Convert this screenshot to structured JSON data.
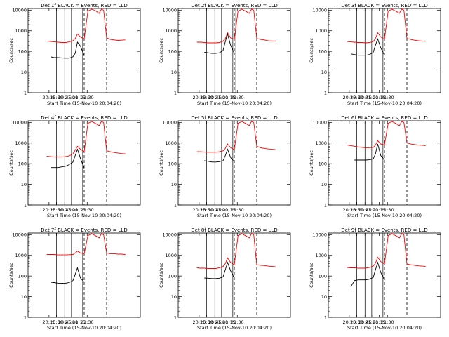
{
  "chart_data": [
    {
      "type": "line",
      "title": "Det 1f BLACK = Events, RED = LLD",
      "xlabel": "Start Time (15-Nov-10 20:04:20)",
      "ylabel": "Counts/sec",
      "xticks": [
        "20:15",
        "20:30",
        "20:45",
        "21:00",
        "21:15",
        "21:30"
      ],
      "yticks": [
        "1",
        "10",
        "100",
        "1000",
        "10000"
      ],
      "ylim": [
        1,
        12000
      ],
      "scale": "log",
      "series": [
        {
          "name": "RED = LLD",
          "color": "#ff0000",
          "x": [
            20.0,
            20.5,
            21.0,
            21.5,
            22.0,
            22.5,
            23.0,
            23.5,
            23.8,
            24.1,
            24.5,
            25.0,
            25.5,
            26.0,
            26.5,
            27.0,
            27.3,
            27.6,
            28.0,
            28.5,
            29.0,
            29.5,
            30.0,
            30.5
          ],
          "y": [
            320,
            300,
            290,
            280,
            270,
            270,
            290,
            330,
            420,
            700,
            500,
            400,
            9000,
            11000,
            9500,
            7000,
            11000,
            10000,
            450,
            380,
            360,
            340,
            350,
            360
          ]
        },
        {
          "name": "BLACK = Events",
          "color": "#000000",
          "x": [
            20.5,
            21.0,
            21.5,
            22.0,
            22.5,
            23.0,
            23.5,
            23.8,
            24.1,
            24.5,
            25.0
          ],
          "y": [
            55,
            50,
            50,
            48,
            47,
            47,
            55,
            80,
            280,
            180,
            60
          ]
        }
      ],
      "vlines_solid": [
        21.3,
        22.4,
        23.3,
        24.8
      ],
      "vlines_dashed": [
        25.0,
        28.0
      ]
    },
    {
      "type": "line",
      "title": "Det 2f BLACK = Events, RED = LLD",
      "xlabel": "Start Time (15-Nov-10 20:04:20)",
      "ylabel": "Counts/sec",
      "xticks": [
        "20:15",
        "20:30",
        "20:45",
        "21:00",
        "21:15",
        "21:30"
      ],
      "yticks": [
        "1",
        "10",
        "100",
        "1000",
        "10000"
      ],
      "ylim": [
        1,
        12000
      ],
      "scale": "log",
      "series": [
        {
          "name": "RED = LLD",
          "color": "#ff0000",
          "x": [
            20.0,
            20.5,
            21.0,
            21.5,
            22.0,
            22.5,
            23.0,
            23.5,
            23.8,
            24.1,
            24.5,
            25.0,
            25.5,
            26.0,
            26.5,
            27.0,
            27.3,
            27.6,
            28.0,
            28.5,
            29.0,
            29.5,
            30.0,
            30.5
          ],
          "y": [
            280,
            280,
            270,
            260,
            260,
            260,
            270,
            310,
            420,
            800,
            450,
            380,
            9000,
            11000,
            9000,
            7000,
            11000,
            10000,
            420,
            380,
            360,
            330,
            320,
            320
          ]
        },
        {
          "name": "BLACK = Events",
          "color": "#000000",
          "x": [
            21.0,
            21.5,
            22.0,
            22.5,
            23.0,
            23.5,
            23.8,
            24.1,
            24.5,
            25.0
          ],
          "y": [
            90,
            85,
            80,
            80,
            85,
            110,
            300,
            700,
            200,
            80
          ]
        }
      ],
      "vlines_solid": [
        21.3,
        22.4,
        23.3,
        24.8,
        25.2
      ],
      "vlines_dashed": [
        25.0,
        28.0
      ]
    },
    {
      "type": "line",
      "title": "Det 3f BLACK = Events, RED = LLD",
      "xlabel": "Start Time (15-Nov-10 20:04:20)",
      "ylabel": "Counts/sec",
      "xticks": [
        "20:15",
        "20:30",
        "20:45",
        "21:00",
        "21:15",
        "21:30"
      ],
      "yticks": [
        "1",
        "10",
        "100",
        "1000",
        "10000"
      ],
      "ylim": [
        1,
        12000
      ],
      "scale": "log",
      "series": [
        {
          "name": "RED = LLD",
          "color": "#ff0000",
          "x": [
            20.0,
            20.5,
            21.0,
            21.5,
            22.0,
            22.5,
            23.0,
            23.5,
            23.8,
            24.1,
            24.5,
            25.0,
            25.5,
            26.0,
            26.5,
            27.0,
            27.3,
            27.6,
            28.0,
            28.5,
            29.0,
            29.5,
            30.0,
            30.5
          ],
          "y": [
            300,
            290,
            280,
            270,
            270,
            260,
            270,
            300,
            420,
            800,
            500,
            380,
            9000,
            11000,
            9000,
            7000,
            11000,
            10000,
            420,
            380,
            350,
            330,
            320,
            310
          ]
        },
        {
          "name": "BLACK = Events",
          "color": "#000000",
          "x": [
            20.5,
            21.0,
            21.5,
            22.0,
            22.5,
            23.0,
            23.5,
            23.8,
            24.1,
            24.5,
            25.0
          ],
          "y": [
            75,
            70,
            65,
            65,
            65,
            70,
            90,
            200,
            400,
            150,
            65
          ]
        }
      ],
      "vlines_solid": [
        21.3,
        22.4,
        23.3,
        24.8
      ],
      "vlines_dashed": [
        25.0,
        28.0
      ]
    },
    {
      "type": "line",
      "title": "Det 4f BLACK = Events, RED = LLD",
      "xlabel": "Start Time (15-Nov-10 20:04:20)",
      "ylabel": "Counts/sec",
      "xticks": [
        "20:15",
        "20:30",
        "20:45",
        "21:00",
        "21:15",
        "21:30"
      ],
      "yticks": [
        "1",
        "10",
        "100",
        "1000",
        "10000"
      ],
      "ylim": [
        1,
        12000
      ],
      "scale": "log",
      "series": [
        {
          "name": "RED = LLD",
          "color": "#ff0000",
          "x": [
            20.0,
            20.5,
            21.0,
            21.5,
            22.0,
            22.5,
            23.0,
            23.5,
            23.8,
            24.1,
            24.5,
            25.0,
            25.5,
            26.0,
            26.5,
            27.0,
            27.3,
            27.6,
            28.0,
            28.5,
            29.0,
            29.5,
            30.0,
            30.5
          ],
          "y": [
            230,
            220,
            210,
            210,
            210,
            220,
            240,
            300,
            450,
            700,
            500,
            380,
            9000,
            11000,
            9000,
            7000,
            11000,
            10000,
            420,
            380,
            350,
            330,
            310,
            300
          ]
        },
        {
          "name": "BLACK = Events",
          "color": "#000000",
          "x": [
            20.5,
            21.0,
            21.5,
            22.0,
            22.5,
            23.0,
            23.5,
            23.8,
            24.1,
            24.5,
            25.0
          ],
          "y": [
            65,
            65,
            65,
            70,
            75,
            90,
            120,
            250,
            500,
            180,
            60
          ]
        }
      ],
      "vlines_solid": [
        21.3,
        22.4,
        23.3,
        24.8
      ],
      "vlines_dashed": [
        25.0,
        28.0
      ]
    },
    {
      "type": "line",
      "title": "Det 5f BLACK = Events, RED = LLD",
      "xlabel": "Start Time (15-Nov-10 20:04:20)",
      "ylabel": "Counts/sec",
      "xticks": [
        "20:15",
        "20:30",
        "20:45",
        "21:00",
        "21:15",
        "21:30"
      ],
      "yticks": [
        "1",
        "10",
        "100",
        "1000",
        "10000"
      ],
      "ylim": [
        1,
        12000
      ],
      "scale": "log",
      "series": [
        {
          "name": "RED = LLD",
          "color": "#ff0000",
          "x": [
            20.0,
            20.5,
            21.0,
            21.5,
            22.0,
            22.5,
            23.0,
            23.5,
            23.8,
            24.1,
            24.5,
            25.0,
            25.5,
            26.0,
            26.5,
            27.0,
            27.3,
            27.6,
            28.0,
            28.5,
            29.0,
            29.5,
            30.0,
            30.5
          ],
          "y": [
            380,
            380,
            370,
            360,
            360,
            360,
            380,
            420,
            550,
            900,
            600,
            480,
            9000,
            11000,
            9000,
            7000,
            11000,
            10000,
            700,
            600,
            550,
            520,
            500,
            480
          ]
        },
        {
          "name": "BLACK = Events",
          "color": "#000000",
          "x": [
            21.0,
            21.5,
            22.0,
            22.5,
            23.0,
            23.5,
            23.8,
            24.1,
            24.5,
            25.0
          ],
          "y": [
            140,
            130,
            120,
            120,
            125,
            140,
            250,
            500,
            200,
            120
          ]
        }
      ],
      "vlines_solid": [
        21.3,
        22.4,
        23.3,
        24.8
      ],
      "vlines_dashed": [
        25.0,
        28.0
      ]
    },
    {
      "type": "line",
      "title": "Det 6f BLACK = Events, RED = LLD",
      "xlabel": "Start Time (15-Nov-10 20:04:20)",
      "ylabel": "Counts/sec",
      "xticks": [
        "20:15",
        "20:30",
        "20:45",
        "21:00",
        "21:15",
        "21:30"
      ],
      "yticks": [
        "1",
        "10",
        "100",
        "1000",
        "10000"
      ],
      "ylim": [
        1,
        12000
      ],
      "scale": "log",
      "series": [
        {
          "name": "RED = LLD",
          "color": "#ff0000",
          "x": [
            20.0,
            20.5,
            21.0,
            21.5,
            22.0,
            22.5,
            23.0,
            23.5,
            23.8,
            24.1,
            24.5,
            25.0,
            25.5,
            26.0,
            26.5,
            27.0,
            27.3,
            27.6,
            28.0,
            28.5,
            29.0,
            29.5,
            30.0,
            30.5
          ],
          "y": [
            800,
            750,
            700,
            650,
            620,
            600,
            600,
            620,
            800,
            1300,
            900,
            800,
            9000,
            11000,
            9000,
            7000,
            11000,
            10000,
            1000,
            900,
            850,
            800,
            780,
            750
          ]
        },
        {
          "name": "BLACK = Events",
          "color": "#000000",
          "x": [
            21.0,
            21.5,
            22.0,
            22.5,
            23.0,
            23.5,
            23.8,
            24.1,
            24.5,
            25.0
          ],
          "y": [
            150,
            150,
            150,
            150,
            155,
            170,
            300,
            900,
            250,
            150
          ]
        }
      ],
      "vlines_solid": [
        21.3,
        22.4,
        23.3,
        24.8
      ],
      "vlines_dashed": [
        25.0,
        28.0
      ]
    },
    {
      "type": "line",
      "title": "Det 7f BLACK = Events, RED = LLD",
      "xlabel": "Start Time (15-Nov-10 20:04:20)",
      "ylabel": "Counts/sec",
      "xticks": [
        "20:15",
        "20:30",
        "20:45",
        "21:00",
        "21:15",
        "21:30"
      ],
      "yticks": [
        "1",
        "10",
        "100",
        "1000",
        "10000"
      ],
      "ylim": [
        1,
        12000
      ],
      "scale": "log",
      "series": [
        {
          "name": "RED = LLD",
          "color": "#ff0000",
          "x": [
            20.0,
            20.5,
            21.0,
            21.5,
            22.0,
            22.5,
            23.0,
            23.5,
            23.8,
            24.1,
            24.5,
            25.0,
            25.5,
            26.0,
            26.5,
            27.0,
            27.3,
            27.6,
            28.0,
            28.5,
            29.0,
            29.5,
            30.0,
            30.5
          ],
          "y": [
            1100,
            1100,
            1100,
            1050,
            1050,
            1050,
            1080,
            1100,
            1300,
            1600,
            1300,
            1200,
            9000,
            11000,
            9000,
            7000,
            11000,
            10000,
            1300,
            1200,
            1200,
            1150,
            1150,
            1100
          ]
        },
        {
          "name": "BLACK = Events",
          "color": "#000000",
          "x": [
            20.5,
            21.0,
            21.5,
            22.0,
            22.5,
            23.0,
            23.5,
            23.8,
            24.1,
            24.5,
            25.0
          ],
          "y": [
            50,
            48,
            45,
            45,
            45,
            48,
            60,
            120,
            250,
            80,
            50
          ]
        }
      ],
      "vlines_solid": [
        21.3,
        22.4,
        23.3,
        24.8
      ],
      "vlines_dashed": [
        25.0,
        28.0
      ]
    },
    {
      "type": "line",
      "title": "Det 8f BLACK = Events, RED = LLD",
      "xlabel": "Start Time (15-Nov-10 20:04:20)",
      "ylabel": "Counts/sec",
      "xticks": [
        "20:15",
        "20:30",
        "20:45",
        "21:00",
        "21:15",
        "21:30"
      ],
      "yticks": [
        "1",
        "10",
        "100",
        "1000",
        "10000"
      ],
      "ylim": [
        1,
        12000
      ],
      "scale": "log",
      "series": [
        {
          "name": "RED = LLD",
          "color": "#ff0000",
          "x": [
            20.0,
            20.5,
            21.0,
            21.5,
            22.0,
            22.5,
            23.0,
            23.5,
            23.8,
            24.1,
            24.5,
            25.0,
            25.5,
            26.0,
            26.5,
            27.0,
            27.3,
            27.6,
            28.0,
            28.5,
            29.0,
            29.5,
            30.0,
            30.5
          ],
          "y": [
            250,
            240,
            240,
            230,
            230,
            230,
            250,
            290,
            400,
            750,
            450,
            350,
            9000,
            11000,
            9000,
            7000,
            11000,
            10000,
            350,
            330,
            320,
            300,
            290,
            280
          ]
        },
        {
          "name": "BLACK = Events",
          "color": "#000000",
          "x": [
            21.0,
            21.5,
            22.0,
            22.5,
            23.0,
            23.5,
            23.8,
            24.1,
            24.5,
            25.0
          ],
          "y": [
            80,
            78,
            75,
            75,
            78,
            90,
            200,
            450,
            180,
            80
          ]
        }
      ],
      "vlines_solid": [
        21.3,
        22.4,
        23.3,
        24.8
      ],
      "vlines_dashed": [
        25.0,
        28.0
      ]
    },
    {
      "type": "line",
      "title": "Det 9f BLACK = Events, RED = LLD",
      "xlabel": "Start Time (15-Nov-10 20:04:20)",
      "ylabel": "Counts/sec",
      "xticks": [
        "20:15",
        "20:30",
        "20:45",
        "21:00",
        "21:15",
        "21:30"
      ],
      "yticks": [
        "1",
        "10",
        "100",
        "1000",
        "10000"
      ],
      "ylim": [
        1,
        12000
      ],
      "scale": "log",
      "series": [
        {
          "name": "RED = LLD",
          "color": "#ff0000",
          "x": [
            20.0,
            20.5,
            21.0,
            21.5,
            22.0,
            22.5,
            23.0,
            23.5,
            23.8,
            24.1,
            24.5,
            25.0,
            25.5,
            26.0,
            26.5,
            27.0,
            27.3,
            27.6,
            28.0,
            28.5,
            29.0,
            29.5,
            30.0,
            30.5
          ],
          "y": [
            260,
            250,
            250,
            240,
            240,
            240,
            260,
            300,
            420,
            800,
            500,
            380,
            9000,
            11000,
            9000,
            7000,
            11000,
            10000,
            380,
            350,
            330,
            310,
            300,
            290
          ]
        },
        {
          "name": "BLACK = Events",
          "color": "#000000",
          "x": [
            20.5,
            21.0,
            21.5,
            22.0,
            22.5,
            23.0,
            23.5,
            23.8,
            24.1,
            24.5,
            25.0
          ],
          "y": [
            30,
            60,
            65,
            65,
            65,
            70,
            85,
            200,
            450,
            150,
            65
          ]
        }
      ],
      "vlines_solid": [
        21.3,
        22.4,
        23.3,
        24.8
      ],
      "vlines_dashed": [
        25.0,
        28.0
      ]
    }
  ]
}
